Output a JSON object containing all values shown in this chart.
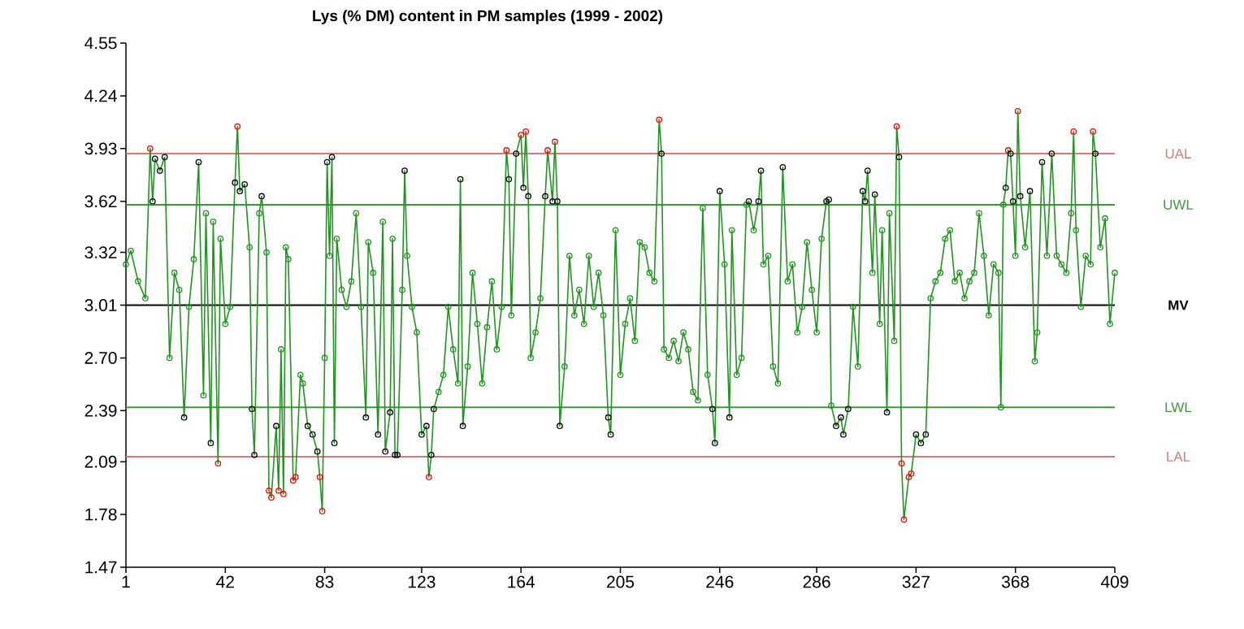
{
  "chart_data": {
    "type": "line",
    "title": "Lys (% DM) content in PM samples (1999 - 2002)",
    "xlim": [
      1,
      409
    ],
    "xticks": [
      1,
      42,
      83,
      123,
      164,
      205,
      246,
      286,
      327,
      368,
      409
    ],
    "ylim": [
      1.47,
      4.55
    ],
    "yticks": [
      1.47,
      1.78,
      2.09,
      2.39,
      {
        "value": 2.7,
        "label": "2.70"
      },
      3.01,
      3.32,
      3.62,
      3.93,
      4.24,
      4.55
    ],
    "marker": "circle",
    "line_style": "solid",
    "ref_lines": [
      {
        "axis": "y",
        "value": 3.9,
        "label": "UAL",
        "color": "#d87878"
      },
      {
        "axis": "y",
        "value": 3.6,
        "label": "UWL",
        "color": "#3a9a3a"
      },
      {
        "axis": "y",
        "value": 3.01,
        "label": "MV",
        "color": "#000000"
      },
      {
        "axis": "y",
        "value": 2.41,
        "label": "LWL",
        "color": "#3a9a3a"
      },
      {
        "axis": "y",
        "value": 2.12,
        "label": "LAL",
        "color": "#d87878"
      }
    ],
    "series": [
      {
        "color": "#1e961e",
        "x": [
          1,
          3,
          6,
          9,
          11,
          12,
          13,
          15,
          17,
          19,
          21,
          23,
          25,
          27,
          29,
          31,
          33,
          34,
          36,
          37,
          39,
          40,
          42,
          44,
          46,
          47,
          48,
          50,
          52,
          53,
          54,
          56,
          57,
          59,
          60,
          61,
          63,
          64,
          65,
          66,
          67,
          68,
          70,
          71,
          73,
          74,
          76,
          78,
          80,
          81,
          82,
          83,
          84,
          85,
          86,
          87,
          88,
          90,
          92,
          94,
          96,
          98,
          100,
          101,
          103,
          105,
          107,
          108,
          110,
          111,
          112,
          113,
          115,
          116,
          117,
          119,
          121,
          123,
          125,
          126,
          127,
          128,
          130,
          132,
          134,
          136,
          138,
          139,
          140,
          142,
          144,
          146,
          148,
          150,
          152,
          154,
          156,
          158,
          159,
          160,
          162,
          164,
          165,
          166,
          167,
          168,
          170,
          172,
          174,
          175,
          177,
          178,
          179,
          180,
          182,
          184,
          186,
          188,
          190,
          192,
          194,
          196,
          198,
          200,
          201,
          203,
          205,
          207,
          209,
          211,
          213,
          215,
          217,
          219,
          221,
          222,
          223,
          225,
          227,
          229,
          231,
          233,
          235,
          237,
          239,
          241,
          243,
          244,
          246,
          248,
          250,
          251,
          253,
          255,
          257,
          258,
          260,
          262,
          263,
          264,
          266,
          268,
          270,
          272,
          274,
          276,
          278,
          280,
          282,
          284,
          286,
          288,
          290,
          291,
          292,
          294,
          296,
          297,
          299,
          301,
          303,
          305,
          306,
          307,
          309,
          310,
          312,
          313,
          315,
          316,
          318,
          319,
          320,
          321,
          322,
          324,
          325,
          327,
          329,
          331,
          333,
          335,
          337,
          339,
          341,
          343,
          345,
          347,
          349,
          351,
          353,
          355,
          357,
          359,
          361,
          362,
          363,
          364,
          365,
          366,
          367,
          368,
          369,
          370,
          372,
          374,
          376,
          377,
          379,
          381,
          383,
          385,
          387,
          389,
          391,
          392,
          393,
          395,
          397,
          399,
          400,
          401,
          403,
          405,
          407,
          409
        ],
        "values": [
          3.25,
          3.33,
          3.15,
          3.05,
          3.93,
          3.62,
          3.87,
          3.8,
          3.88,
          2.7,
          3.2,
          3.1,
          2.35,
          3.0,
          3.28,
          3.85,
          2.48,
          3.55,
          2.2,
          3.5,
          2.08,
          3.4,
          2.9,
          3.0,
          3.73,
          4.06,
          3.68,
          3.72,
          3.35,
          2.4,
          2.13,
          3.55,
          3.65,
          3.32,
          1.92,
          1.88,
          2.3,
          1.92,
          2.75,
          1.9,
          3.35,
          3.28,
          1.98,
          2.0,
          2.6,
          2.55,
          2.3,
          2.25,
          2.15,
          2.0,
          1.8,
          2.7,
          3.85,
          3.3,
          3.88,
          2.2,
          3.4,
          3.1,
          3.0,
          3.15,
          3.55,
          3.0,
          2.35,
          3.38,
          3.2,
          2.25,
          3.5,
          2.15,
          2.38,
          3.4,
          2.13,
          2.13,
          3.1,
          3.8,
          3.3,
          3.0,
          2.85,
          2.25,
          2.3,
          2.0,
          2.13,
          2.4,
          2.5,
          2.6,
          3.0,
          2.75,
          2.55,
          3.75,
          2.3,
          2.65,
          3.2,
          2.9,
          2.55,
          2.88,
          3.15,
          2.75,
          3.0,
          3.92,
          3.75,
          2.95,
          3.9,
          4.01,
          3.7,
          4.03,
          3.65,
          2.7,
          2.85,
          3.05,
          3.65,
          3.92,
          3.62,
          3.97,
          3.62,
          2.3,
          2.65,
          3.3,
          2.95,
          3.1,
          2.9,
          3.3,
          3.0,
          3.2,
          2.95,
          2.35,
          2.25,
          3.45,
          2.6,
          2.9,
          3.05,
          2.8,
          3.38,
          3.35,
          3.2,
          3.15,
          4.1,
          3.9,
          2.75,
          2.7,
          2.8,
          2.68,
          2.85,
          2.75,
          2.5,
          2.45,
          3.58,
          2.6,
          2.4,
          2.2,
          3.68,
          3.25,
          2.35,
          3.45,
          2.6,
          2.7,
          3.6,
          3.62,
          3.45,
          3.62,
          3.8,
          3.25,
          3.3,
          2.65,
          2.55,
          3.82,
          3.15,
          3.25,
          2.85,
          3.0,
          3.38,
          3.1,
          2.85,
          3.4,
          3.62,
          3.63,
          2.42,
          2.3,
          2.35,
          2.25,
          2.4,
          3.0,
          2.65,
          3.68,
          3.62,
          3.8,
          3.2,
          3.66,
          2.9,
          3.45,
          2.38,
          3.55,
          2.8,
          4.06,
          3.88,
          2.08,
          1.75,
          2.0,
          2.02,
          2.25,
          2.2,
          2.25,
          3.05,
          3.15,
          3.2,
          3.4,
          3.45,
          3.15,
          3.2,
          3.05,
          3.15,
          3.2,
          3.55,
          3.3,
          2.95,
          3.25,
          3.2,
          2.41,
          3.6,
          3.7,
          3.92,
          3.9,
          3.62,
          3.3,
          4.15,
          3.65,
          3.35,
          3.68,
          2.68,
          2.85,
          3.85,
          3.3,
          3.9,
          3.3,
          3.25,
          3.2,
          3.55,
          4.03,
          3.45,
          3.0,
          3.3,
          3.25,
          4.03,
          3.9,
          3.35,
          3.52,
          2.9,
          3.2
        ],
        "colors": [
          "#1e961e",
          "#1e961e",
          "#1e961e",
          "#1e961e",
          "#ff0000",
          "#000000",
          "#000000",
          "#000000",
          "#000000",
          "#1e961e",
          "#1e961e",
          "#1e961e",
          "#000000",
          "#1e961e",
          "#1e961e",
          "#000000",
          "#1e961e",
          "#1e961e",
          "#000000",
          "#1e961e",
          "#ff0000",
          "#1e961e",
          "#1e961e",
          "#1e961e",
          "#000000",
          "#ff0000",
          "#000000",
          "#000000",
          "#1e961e",
          "#000000",
          "#000000",
          "#1e961e",
          "#000000",
          "#1e961e",
          "#ff0000",
          "#ff0000",
          "#000000",
          "#ff0000",
          "#1e961e",
          "#ff0000",
          "#1e961e",
          "#1e961e",
          "#ff0000",
          "#ff0000",
          "#1e961e",
          "#1e961e",
          "#000000",
          "#000000",
          "#000000",
          "#ff0000",
          "#ff0000",
          "#1e961e",
          "#000000",
          "#1e961e",
          "#000000",
          "#000000",
          "#1e961e",
          "#1e961e",
          "#1e961e",
          "#1e961e",
          "#1e961e",
          "#1e961e",
          "#000000",
          "#1e961e",
          "#1e961e",
          "#000000",
          "#1e961e",
          "#000000",
          "#000000",
          "#1e961e",
          "#000000",
          "#000000",
          "#1e961e",
          "#000000",
          "#1e961e",
          "#1e961e",
          "#1e961e",
          "#000000",
          "#000000",
          "#ff0000",
          "#000000",
          "#000000",
          "#1e961e",
          "#1e961e",
          "#1e961e",
          "#1e961e",
          "#1e961e",
          "#000000",
          "#000000",
          "#1e961e",
          "#1e961e",
          "#1e961e",
          "#1e961e",
          "#1e961e",
          "#1e961e",
          "#1e961e",
          "#1e961e",
          "#ff0000",
          "#000000",
          "#1e961e",
          "#000000",
          "#ff0000",
          "#000000",
          "#ff0000",
          "#000000",
          "#1e961e",
          "#1e961e",
          "#1e961e",
          "#000000",
          "#ff0000",
          "#000000",
          "#ff0000",
          "#000000",
          "#000000",
          "#1e961e",
          "#1e961e",
          "#1e961e",
          "#1e961e",
          "#1e961e",
          "#1e961e",
          "#1e961e",
          "#1e961e",
          "#1e961e",
          "#000000",
          "#000000",
          "#1e961e",
          "#1e961e",
          "#1e961e",
          "#1e961e",
          "#1e961e",
          "#1e961e",
          "#1e961e",
          "#1e961e",
          "#1e961e",
          "#ff0000",
          "#000000",
          "#1e961e",
          "#1e961e",
          "#1e961e",
          "#1e961e",
          "#1e961e",
          "#1e961e",
          "#1e961e",
          "#1e961e",
          "#1e961e",
          "#1e961e",
          "#000000",
          "#000000",
          "#000000",
          "#1e961e",
          "#000000",
          "#1e961e",
          "#1e961e",
          "#1e961e",
          "#1e961e",
          "#000000",
          "#1e961e",
          "#000000",
          "#000000",
          "#1e961e",
          "#1e961e",
          "#1e961e",
          "#1e961e",
          "#000000",
          "#1e961e",
          "#1e961e",
          "#1e961e",
          "#1e961e",
          "#1e961e",
          "#1e961e",
          "#1e961e",
          "#1e961e",
          "#000000",
          "#000000",
          "#1e961e",
          "#000000",
          "#000000",
          "#000000",
          "#000000",
          "#1e961e",
          "#1e961e",
          "#000000",
          "#000000",
          "#000000",
          "#1e961e",
          "#000000",
          "#1e961e",
          "#1e961e",
          "#000000",
          "#1e961e",
          "#1e961e",
          "#ff0000",
          "#000000",
          "#ff0000",
          "#ff0000",
          "#ff0000",
          "#ff0000",
          "#000000",
          "#000000",
          "#000000",
          "#1e961e",
          "#1e961e",
          "#1e961e",
          "#1e961e",
          "#1e961e",
          "#1e961e",
          "#1e961e",
          "#1e961e",
          "#1e961e",
          "#1e961e",
          "#1e961e",
          "#1e961e",
          "#1e961e",
          "#1e961e",
          "#1e961e",
          "#1e961e",
          "#1e961e",
          "#000000",
          "#ff0000",
          "#000000",
          "#000000",
          "#1e961e",
          "#ff0000",
          "#000000",
          "#1e961e",
          "#000000",
          "#1e961e",
          "#1e961e",
          "#000000",
          "#1e961e",
          "#000000",
          "#1e961e",
          "#1e961e",
          "#1e961e",
          "#1e961e",
          "#ff0000",
          "#1e961e",
          "#1e961e",
          "#1e961e",
          "#1e961e",
          "#ff0000",
          "#000000",
          "#1e961e",
          "#1e961e",
          "#1e961e",
          "#1e961e"
        ]
      }
    ]
  }
}
